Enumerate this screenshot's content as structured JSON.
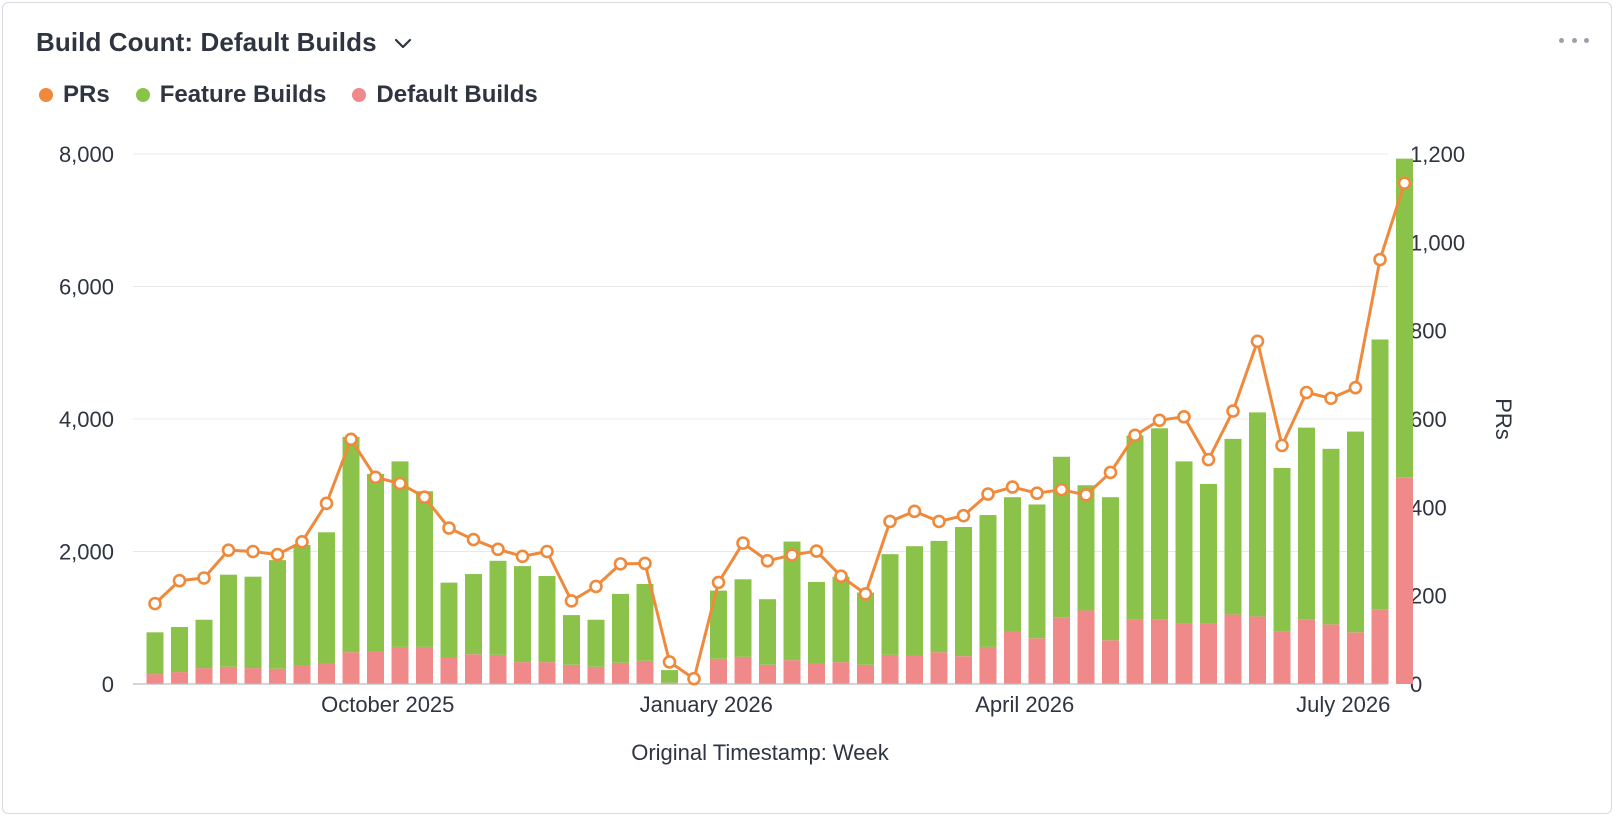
{
  "header": {
    "title": "Build Count: Default Builds",
    "chevron_icon": "chevron-down-icon",
    "more_icon": "more-horizontal-icon"
  },
  "legend": [
    {
      "label": "PRs",
      "color": "#ef8a3c"
    },
    {
      "label": "Feature Builds",
      "color": "#8bc34a"
    },
    {
      "label": "Default Builds",
      "color": "#f08a8a"
    }
  ],
  "chart_data": {
    "type": "bar",
    "stacked": true,
    "xlabel": "Original Timestamp: Week",
    "ylabel_left": "",
    "ylabel_right": "PRs",
    "ylim_left": [
      0,
      8000
    ],
    "ylim_right": [
      0,
      1200
    ],
    "yticks_left": [
      "0",
      "2,000",
      "4,000",
      "6,000",
      "8,000"
    ],
    "yticks_right": [
      "0",
      "200",
      "400",
      "600",
      "800",
      "1,000",
      "1,200"
    ],
    "xtick_labels": [
      {
        "label": "October 2025",
        "index": 9.5
      },
      {
        "label": "January 2026",
        "index": 22.5
      },
      {
        "label": "April 2026",
        "index": 35.5
      },
      {
        "label": "July 2026",
        "index": 48.5
      }
    ],
    "grid": true,
    "series": [
      {
        "name": "Default Builds",
        "axis": "left",
        "kind": "bar",
        "values": [
          150,
          180,
          240,
          260,
          240,
          230,
          280,
          310,
          480,
          490,
          560,
          560,
          400,
          450,
          440,
          330,
          330,
          290,
          260,
          320,
          350,
          20,
          0,
          380,
          410,
          290,
          360,
          310,
          330,
          290,
          440,
          430,
          480,
          420,
          560,
          800,
          690,
          1000,
          1110,
          660,
          980,
          970,
          920,
          920,
          1050,
          1020,
          790,
          970,
          900,
          780,
          1130,
          3120
        ]
      },
      {
        "name": "Feature Builds",
        "axis": "left",
        "kind": "bar",
        "values": [
          630,
          680,
          730,
          1390,
          1380,
          1640,
          1820,
          1980,
          3250,
          2680,
          2800,
          2350,
          1130,
          1210,
          1420,
          1450,
          1300,
          750,
          710,
          1040,
          1160,
          190,
          0,
          1030,
          1170,
          990,
          1790,
          1230,
          1290,
          1090,
          1520,
          1650,
          1680,
          1950,
          1990,
          2020,
          2020,
          2430,
          1890,
          2160,
          2770,
          2890,
          2440,
          2100,
          2650,
          3080,
          2470,
          2900,
          2650,
          3030,
          4070,
          4810
        ]
      },
      {
        "name": "PRs",
        "axis": "right",
        "kind": "line",
        "values": [
          182,
          234,
          240,
          303,
          300,
          293,
          322,
          409,
          554,
          468,
          454,
          423,
          353,
          327,
          305,
          289,
          300,
          188,
          221,
          272,
          273,
          50,
          12,
          230,
          319,
          279,
          292,
          301,
          244,
          204,
          368,
          391,
          368,
          381,
          430,
          446,
          432,
          440,
          428,
          479,
          563,
          597,
          605,
          508,
          618,
          776,
          540,
          660,
          647,
          671,
          961,
          1134
        ]
      }
    ]
  }
}
